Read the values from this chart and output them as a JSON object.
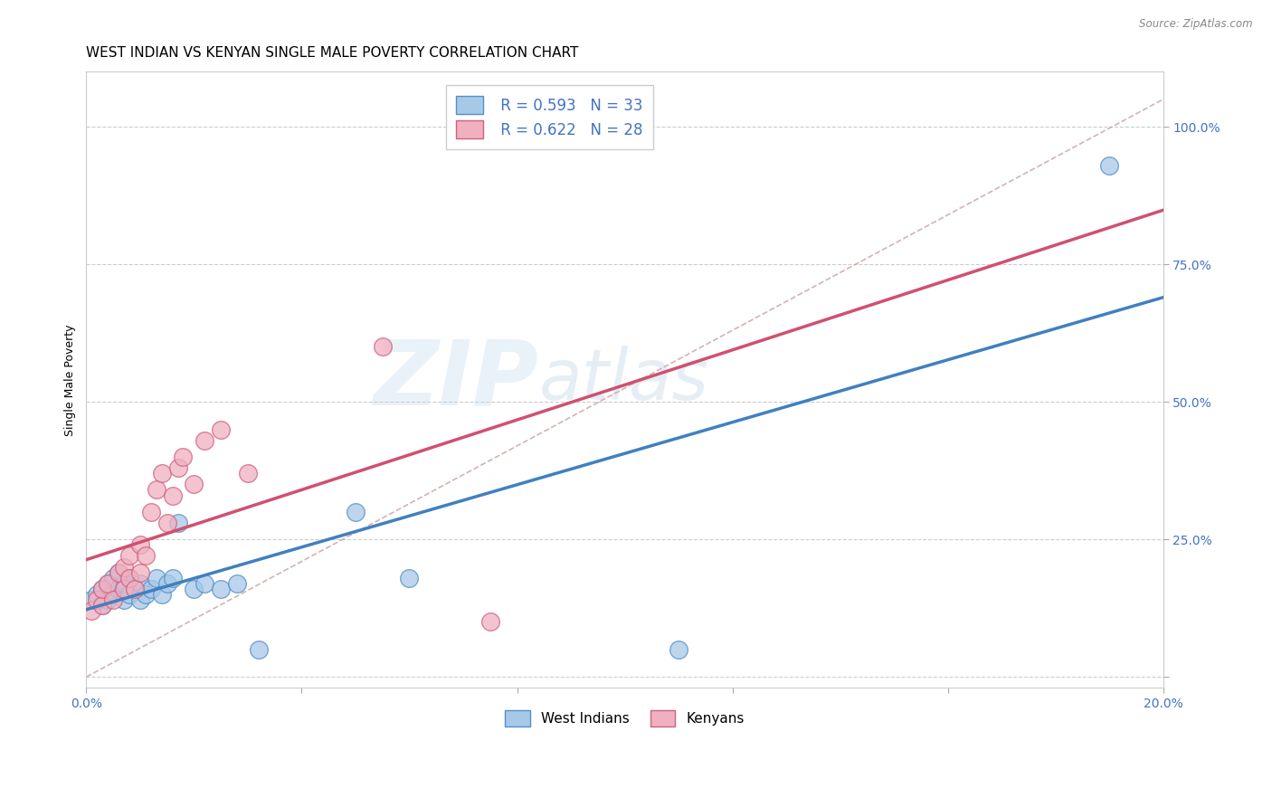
{
  "title": "WEST INDIAN VS KENYAN SINGLE MALE POVERTY CORRELATION CHART",
  "source": "Source: ZipAtlas.com",
  "ylabel": "Single Male Poverty",
  "legend_label1": "West Indians",
  "legend_label2": "Kenyans",
  "R1": "0.593",
  "N1": "33",
  "R2": "0.622",
  "N2": "28",
  "xlim": [
    0.0,
    0.2
  ],
  "ylim": [
    -0.02,
    1.1
  ],
  "color_blue": "#a8c8e8",
  "color_pink": "#f0b0c0",
  "color_blue_edge": "#5090c8",
  "color_pink_edge": "#d06080",
  "color_blue_line": "#4080c0",
  "color_pink_line": "#d05070",
  "color_diag": "#c8a0a0",
  "color_text_blue": "#4472c4",
  "background_color": "#ffffff",
  "ytick_right": [
    0.0,
    0.25,
    0.5,
    0.75,
    1.0
  ],
  "ytick_right_labels": [
    "",
    "25.0%",
    "50.0%",
    "75.0%",
    "100.0%"
  ],
  "wi_x": [
    0.001,
    0.002,
    0.003,
    0.003,
    0.004,
    0.004,
    0.005,
    0.005,
    0.006,
    0.006,
    0.007,
    0.007,
    0.008,
    0.008,
    0.009,
    0.01,
    0.01,
    0.011,
    0.012,
    0.013,
    0.014,
    0.015,
    0.016,
    0.017,
    0.02,
    0.022,
    0.025,
    0.028,
    0.032,
    0.05,
    0.06,
    0.11,
    0.19
  ],
  "wi_y": [
    0.14,
    0.15,
    0.13,
    0.16,
    0.14,
    0.17,
    0.15,
    0.18,
    0.16,
    0.19,
    0.14,
    0.17,
    0.15,
    0.18,
    0.16,
    0.14,
    0.17,
    0.15,
    0.16,
    0.18,
    0.15,
    0.17,
    0.18,
    0.28,
    0.16,
    0.17,
    0.16,
    0.17,
    0.05,
    0.3,
    0.18,
    0.05,
    0.93
  ],
  "ke_x": [
    0.001,
    0.002,
    0.003,
    0.003,
    0.004,
    0.005,
    0.006,
    0.007,
    0.007,
    0.008,
    0.008,
    0.009,
    0.01,
    0.01,
    0.011,
    0.012,
    0.013,
    0.014,
    0.015,
    0.016,
    0.017,
    0.018,
    0.02,
    0.022,
    0.025,
    0.03,
    0.055,
    0.075
  ],
  "ke_y": [
    0.12,
    0.14,
    0.13,
    0.16,
    0.17,
    0.14,
    0.19,
    0.16,
    0.2,
    0.18,
    0.22,
    0.16,
    0.24,
    0.19,
    0.22,
    0.3,
    0.34,
    0.37,
    0.28,
    0.33,
    0.38,
    0.4,
    0.35,
    0.43,
    0.45,
    0.37,
    0.6,
    0.1
  ],
  "title_fontsize": 11,
  "tick_fontsize": 10,
  "legend_fontsize": 12
}
